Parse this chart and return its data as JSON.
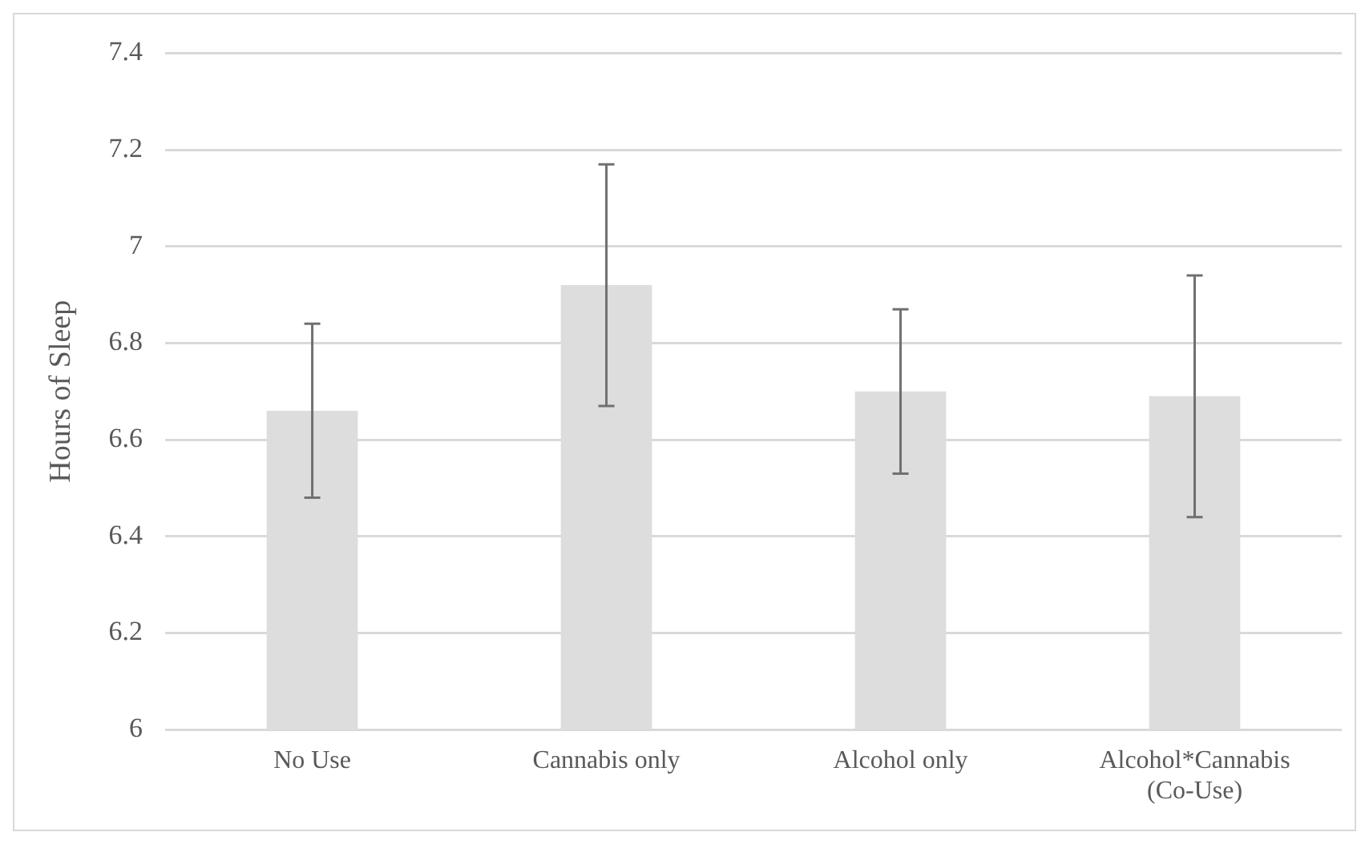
{
  "chart_data": {
    "type": "bar",
    "ylabel": "Hours of Sleep",
    "categories": [
      "No Use",
      "Cannabis only",
      "Alcohol only",
      "Alcohol*Cannabis\n(Co-Use)"
    ],
    "values": [
      6.66,
      6.92,
      6.7,
      6.69
    ],
    "errors": [
      0.18,
      0.25,
      0.17,
      0.25
    ],
    "color": "#dddddd",
    "ylim": [
      6,
      7.4
    ],
    "yticks": [
      6,
      6.2,
      6.4,
      6.6,
      6.8,
      7,
      7.2,
      7.4
    ],
    "grid": "y"
  }
}
